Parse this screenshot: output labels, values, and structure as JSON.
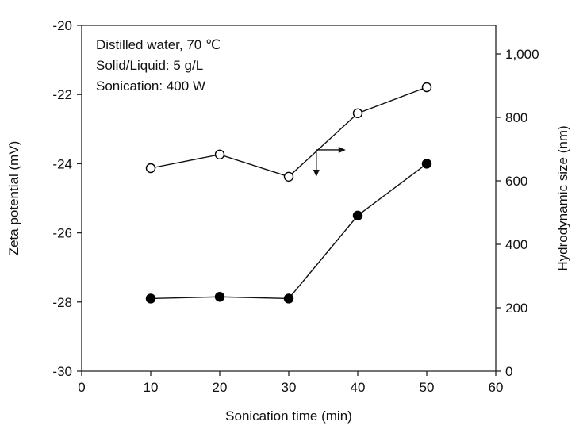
{
  "chart_data": {
    "type": "line",
    "title": "",
    "xlabel": "Sonication time (min)",
    "ylabel": "Zeta potential (mV)",
    "y2label": "Hydrodynamic size (nm)",
    "xlim": [
      0,
      60
    ],
    "ylim": [
      -30,
      -20
    ],
    "y2lim": [
      0,
      1090
    ],
    "x_ticks": [
      0,
      10,
      20,
      30,
      40,
      50,
      60
    ],
    "x_tick_labels": [
      "0",
      "10",
      "20",
      "30",
      "40",
      "50",
      "60"
    ],
    "y_ticks": [
      -30,
      -28,
      -26,
      -24,
      -22,
      -20
    ],
    "y_tick_labels": [
      "-30",
      "-28",
      "-26",
      "-24",
      "-22",
      "-20"
    ],
    "y2_ticks": [
      0,
      200,
      400,
      600,
      800,
      1000
    ],
    "y2_tick_labels": [
      "0",
      "200",
      "400",
      "600",
      "800",
      "1,000"
    ],
    "grid": false,
    "x": [
      10,
      20,
      30,
      40,
      50
    ],
    "series": [
      {
        "name": "Hydrodynamic size",
        "axis": "right",
        "marker": "open-circle",
        "values": [
          640,
          683,
          613,
          813,
          895
        ]
      },
      {
        "name": "Zeta potential",
        "axis": "left",
        "marker": "filled-circle",
        "values": [
          -27.9,
          -27.85,
          -27.9,
          -25.5,
          -24.0
        ]
      }
    ],
    "annotations": [
      "Distilled water, 70 ℃",
      "Solid/Liquid: 5 g/L",
      "Sonication: 400 W"
    ],
    "axis_indicator": {
      "at": {
        "x": 34,
        "y": -23.6
      },
      "arrows": [
        "right",
        "down"
      ]
    }
  }
}
